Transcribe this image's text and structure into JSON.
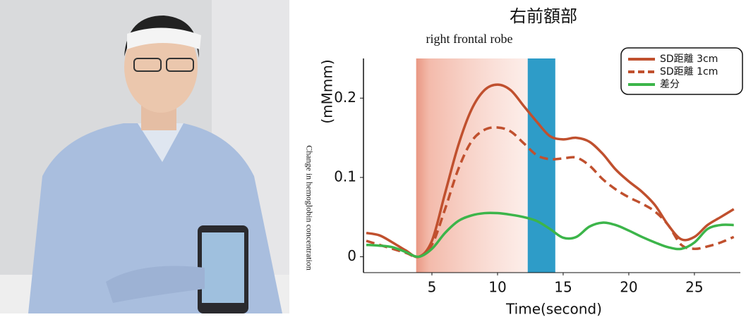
{
  "chart_data": {
    "type": "line",
    "title": "右前額部",
    "subtitle": "right frontal robe",
    "y_axis_label": "(mMmm)",
    "y_axis_caption": "Change in hemoglobin concentration",
    "x_axis_label": "Time(second)",
    "x": [
      0,
      1,
      2,
      3,
      4,
      5,
      6,
      7,
      8,
      9,
      10,
      11,
      12,
      13,
      14,
      15,
      16,
      17,
      18,
      19,
      20,
      21,
      22,
      23,
      24,
      25,
      26,
      27,
      28
    ],
    "series": [
      {
        "name": "SD距離 3cm",
        "color": "#c0502e",
        "dashed": false,
        "values": [
          0.03,
          0.027,
          0.018,
          0.008,
          0.0,
          0.02,
          0.08,
          0.14,
          0.185,
          0.21,
          0.217,
          0.21,
          0.19,
          0.17,
          0.152,
          0.148,
          0.15,
          0.145,
          0.13,
          0.11,
          0.095,
          0.082,
          0.065,
          0.04,
          0.022,
          0.025,
          0.04,
          0.05,
          0.06
        ]
      },
      {
        "name": "SD距離 1cm",
        "color": "#c0502e",
        "dashed": true,
        "values": [
          0.02,
          0.015,
          0.01,
          0.005,
          0.0,
          0.015,
          0.06,
          0.11,
          0.145,
          0.16,
          0.163,
          0.158,
          0.143,
          0.128,
          0.123,
          0.124,
          0.125,
          0.115,
          0.098,
          0.085,
          0.075,
          0.067,
          0.057,
          0.04,
          0.015,
          0.01,
          0.013,
          0.018,
          0.025
        ]
      },
      {
        "name": "差分",
        "color": "#3cb54a",
        "dashed": false,
        "values": [
          0.015,
          0.014,
          0.012,
          0.006,
          0.0,
          0.01,
          0.03,
          0.045,
          0.052,
          0.055,
          0.055,
          0.053,
          0.05,
          0.045,
          0.035,
          0.024,
          0.025,
          0.038,
          0.043,
          0.04,
          0.033,
          0.025,
          0.018,
          0.012,
          0.01,
          0.018,
          0.035,
          0.04,
          0.04
        ]
      }
    ],
    "spans": [
      {
        "xlim": [
          3.8,
          12.3
        ],
        "color": "#e8927c"
      },
      {
        "xlim": [
          12.3,
          14.4
        ],
        "color": "#2e9cc8"
      }
    ],
    "xlim": [
      0,
      28.5
    ],
    "ylim": [
      -0.02,
      0.25
    ],
    "xticks": [
      5,
      10,
      15,
      20,
      25
    ],
    "yticks": [
      0,
      0.1,
      0.2
    ]
  }
}
